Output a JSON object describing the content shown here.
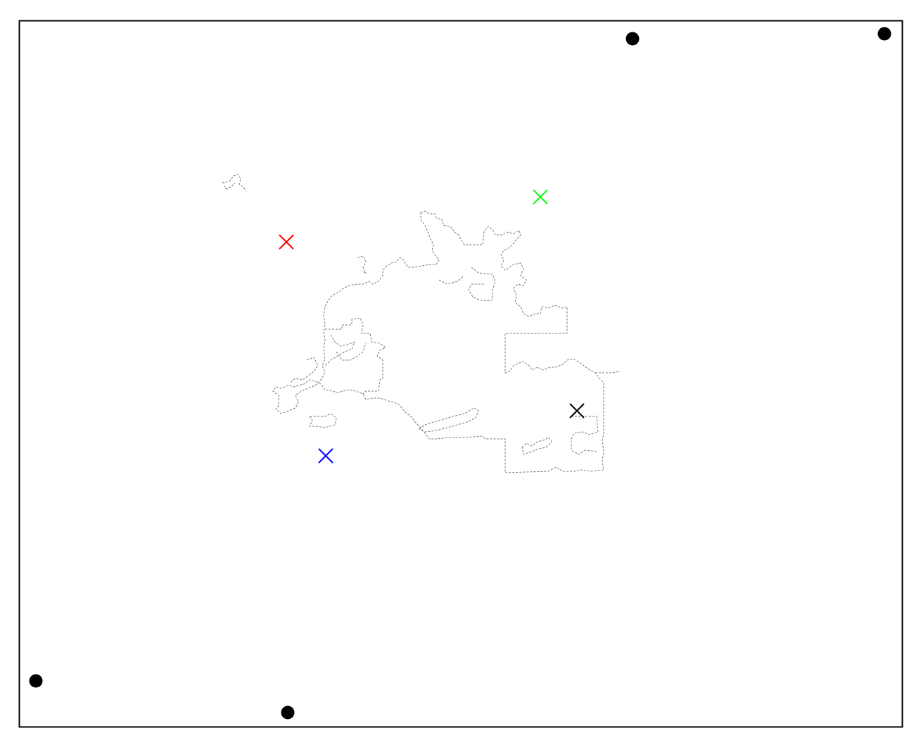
{
  "map": {
    "frame_color": "#000000",
    "boundary_color": "#777777",
    "boundary_style": "dashed",
    "marker_colors": {
      "red": "#ff0000",
      "green": "#00ff00",
      "blue": "#0000ff",
      "black": "#000000"
    },
    "corner_dot_color": "#000000",
    "x_markers": [
      {
        "name": "red-x-marker",
        "color": "red"
      },
      {
        "name": "green-x-marker",
        "color": "green"
      },
      {
        "name": "blue-x-marker",
        "color": "blue"
      },
      {
        "name": "black-x-marker",
        "color": "black"
      }
    ],
    "dots": [
      {
        "name": "dot-top-center"
      },
      {
        "name": "dot-top-right"
      },
      {
        "name": "dot-bottom-left"
      },
      {
        "name": "dot-bottom-center"
      }
    ]
  }
}
